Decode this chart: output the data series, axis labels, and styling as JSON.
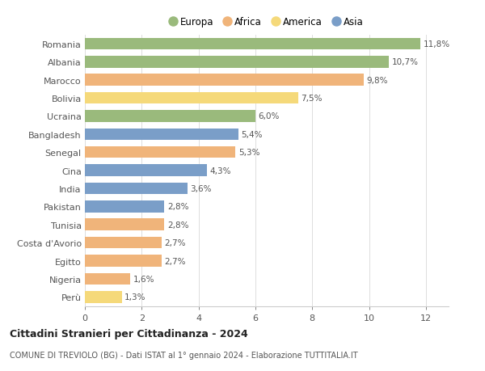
{
  "countries": [
    "Romania",
    "Albania",
    "Marocco",
    "Bolivia",
    "Ucraina",
    "Bangladesh",
    "Senegal",
    "Cina",
    "India",
    "Pakistan",
    "Tunisia",
    "Costa d'Avorio",
    "Egitto",
    "Nigeria",
    "Perù"
  ],
  "values": [
    11.8,
    10.7,
    9.8,
    7.5,
    6.0,
    5.4,
    5.3,
    4.3,
    3.6,
    2.8,
    2.8,
    2.7,
    2.7,
    1.6,
    1.3
  ],
  "labels": [
    "11,8%",
    "10,7%",
    "9,8%",
    "7,5%",
    "6,0%",
    "5,4%",
    "5,3%",
    "4,3%",
    "3,6%",
    "2,8%",
    "2,8%",
    "2,7%",
    "2,7%",
    "1,6%",
    "1,3%"
  ],
  "continents": [
    "Europa",
    "Europa",
    "Africa",
    "America",
    "Europa",
    "Asia",
    "Africa",
    "Asia",
    "Asia",
    "Asia",
    "Africa",
    "Africa",
    "Africa",
    "Africa",
    "America"
  ],
  "colors": {
    "Europa": "#9aba7c",
    "Africa": "#f0b47a",
    "America": "#f5d97a",
    "Asia": "#7a9ec8"
  },
  "legend_order": [
    "Europa",
    "Africa",
    "America",
    "Asia"
  ],
  "title": "Cittadini Stranieri per Cittadinanza - 2024",
  "subtitle": "COMUNE DI TREVIOLO (BG) - Dati ISTAT al 1° gennaio 2024 - Elaborazione TUTTITALIA.IT",
  "xlim": [
    0,
    12.8
  ],
  "xticks": [
    0,
    2,
    4,
    6,
    8,
    10,
    12
  ],
  "bg_color": "#ffffff",
  "grid_color": "#dddddd"
}
